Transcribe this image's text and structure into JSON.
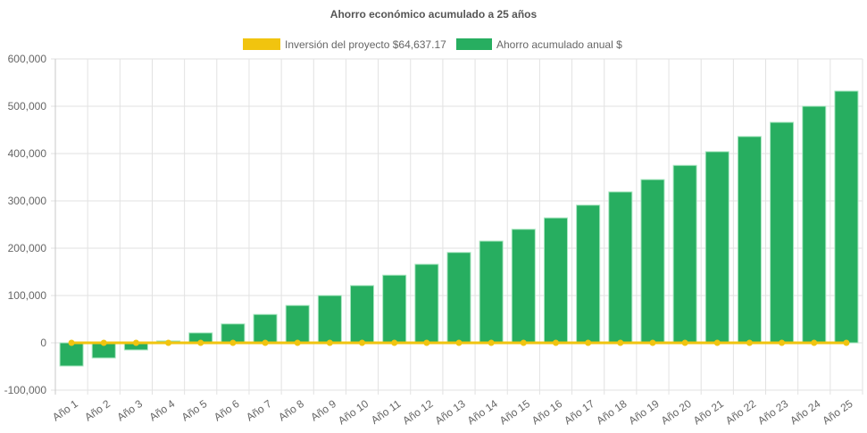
{
  "chart_data": {
    "type": "bar",
    "title": "Ahorro económico acumulado a 25 años",
    "categories": [
      "Año 1",
      "Año 2",
      "Año 3",
      "Año 4",
      "Año 5",
      "Año 6",
      "Año 7",
      "Año 8",
      "Año 9",
      "Año 10",
      "Año 11",
      "Año 12",
      "Año 13",
      "Año 14",
      "Año 15",
      "Año 16",
      "Año 17",
      "Año 18",
      "Año 19",
      "Año 20",
      "Año 21",
      "Año 22",
      "Año 23",
      "Año 24",
      "Año 25"
    ],
    "series": [
      {
        "name": "Inversión del proyecto $64,637.17",
        "type": "line",
        "color": "#f1c40f",
        "values": [
          0,
          0,
          0,
          0,
          0,
          0,
          0,
          0,
          0,
          0,
          0,
          0,
          0,
          0,
          0,
          0,
          0,
          0,
          0,
          0,
          0,
          0,
          0,
          0,
          0
        ]
      },
      {
        "name": "Ahorro acumulado anual $",
        "type": "bar",
        "color": "#27ae60",
        "values": [
          -49000,
          -32000,
          -15000,
          4000,
          21000,
          40000,
          60000,
          79000,
          100000,
          121000,
          143000,
          166000,
          191000,
          215000,
          240000,
          264000,
          291000,
          319000,
          345000,
          375000,
          404000,
          436000,
          466000,
          500000,
          532000
        ]
      }
    ],
    "ylim": [
      -100000,
      600000
    ],
    "yticks": [
      "600,000",
      "500,000",
      "400,000",
      "300,000",
      "200,000",
      "100,000",
      "0",
      "-100,000"
    ],
    "ytick_values": [
      600000,
      500000,
      400000,
      300000,
      200000,
      100000,
      0,
      -100000
    ],
    "grid": true,
    "legend": "top"
  }
}
